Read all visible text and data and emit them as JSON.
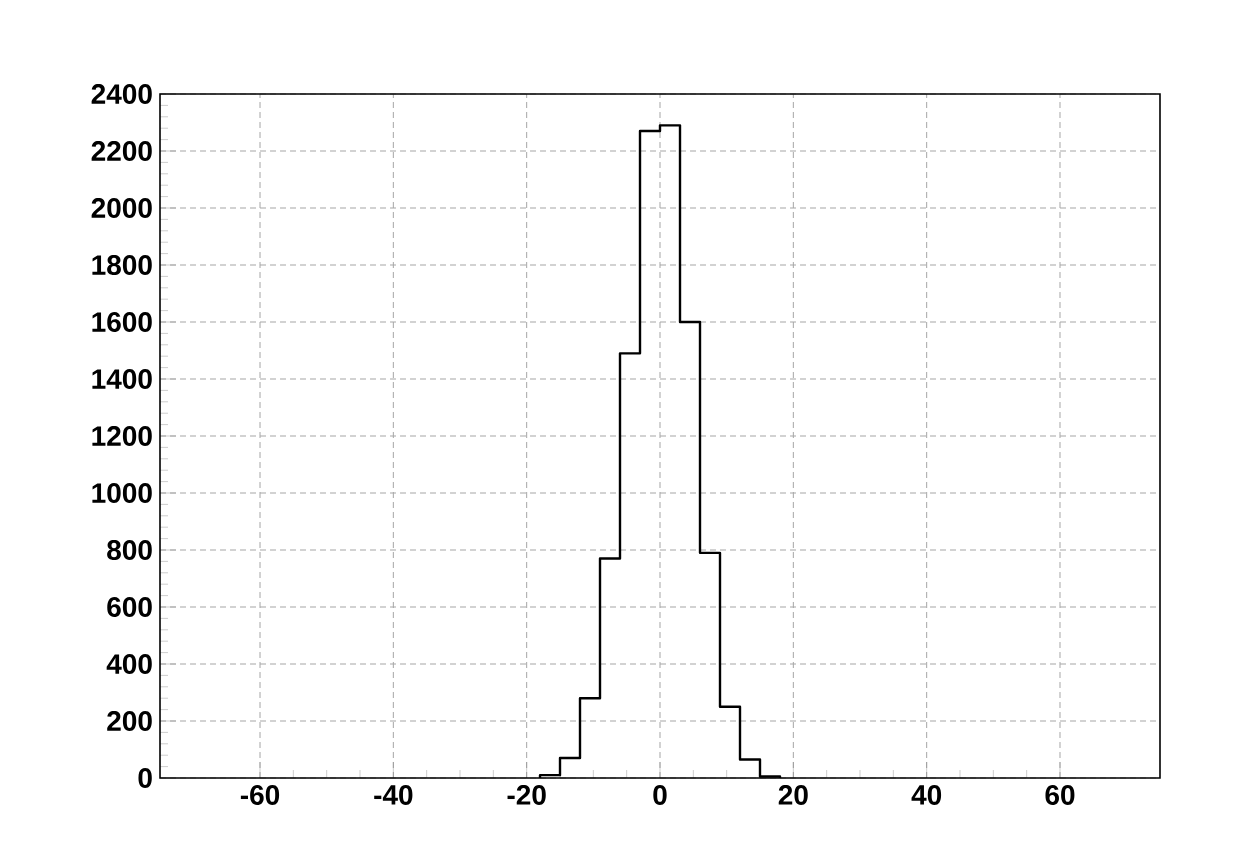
{
  "chart_data": {
    "type": "histogram",
    "color": "#000000",
    "bins": [
      -18,
      -15,
      -12,
      -9,
      -6,
      -3,
      0,
      3,
      6,
      9,
      12,
      15,
      18
    ],
    "values": [
      10,
      70,
      280,
      770,
      1490,
      2270,
      2290,
      1600,
      790,
      250,
      65,
      5
    ],
    "xlim": [
      -75,
      75
    ],
    "ylim": [
      0,
      2400
    ],
    "xticks": [
      -60,
      -40,
      -20,
      0,
      20,
      40,
      60
    ],
    "yticks": [
      0,
      200,
      400,
      600,
      800,
      1000,
      1200,
      1400,
      1600,
      1800,
      2000,
      2200,
      2400
    ],
    "grid": true
  }
}
